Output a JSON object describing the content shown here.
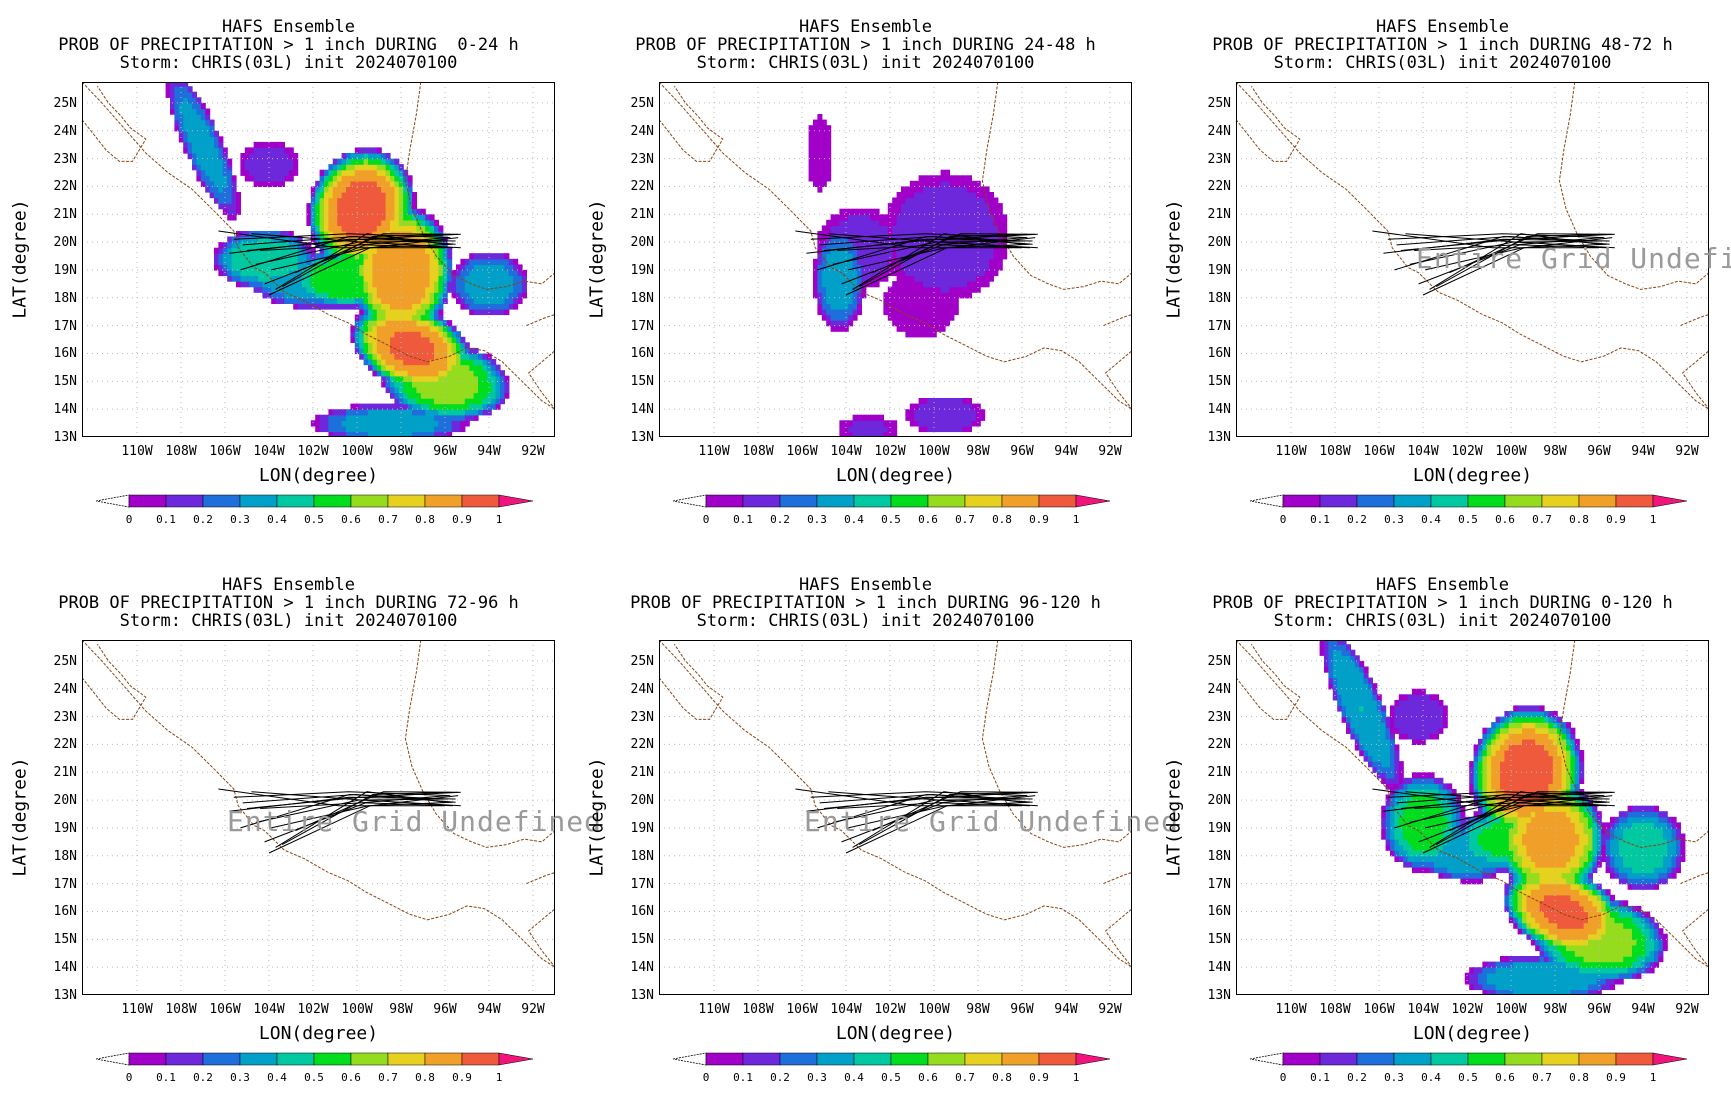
{
  "panels": [
    {
      "title1": "HAFS Ensemble",
      "title2": "PROB OF PRECIPITATION > 1 inch DURING  0-24 h",
      "title3": "Storm: CHRIS(03L) init 2024070100",
      "message": "",
      "field": "p0_24"
    },
    {
      "title1": "HAFS Ensemble",
      "title2": "PROB OF PRECIPITATION > 1 inch DURING 24-48 h",
      "title3": "Storm: CHRIS(03L) init 2024070100",
      "message": "",
      "field": "p24_48"
    },
    {
      "title1": "HAFS Ensemble",
      "title2": "PROB OF PRECIPITATION > 1 inch DURING 48-72 h",
      "title3": "Storm: CHRIS(03L) init 2024070100",
      "message": "Entire Grid Undefined",
      "field": "none"
    },
    {
      "title1": "HAFS Ensemble",
      "title2": "PROB OF PRECIPITATION > 1 inch DURING 72-96 h",
      "title3": "Storm: CHRIS(03L) init 2024070100",
      "message": "Entire Grid Undefined",
      "field": "none"
    },
    {
      "title1": "HAFS Ensemble",
      "title2": "PROB OF PRECIPITATION > 1 inch DURING 96-120 h",
      "title3": "Storm: CHRIS(03L) init 2024070100",
      "message": "Entire Grid Undefined",
      "field": "none"
    },
    {
      "title1": "HAFS Ensemble",
      "title2": "PROB OF PRECIPITATION > 1 inch DURING 0-120 h",
      "title3": "Storm: CHRIS(03L) init 2024070100",
      "message": "",
      "field": "p0_120"
    }
  ],
  "axes": {
    "xlabel": "LON(degree)",
    "ylabel": "LAT(degree)",
    "lon_range": [
      -112.5,
      -91
    ],
    "lat_range": [
      13,
      25.75
    ],
    "xticks": [
      -110,
      -108,
      -106,
      -104,
      -102,
      -100,
      -98,
      -96,
      -94,
      -92
    ],
    "xtick_labels": [
      "110W",
      "108W",
      "106W",
      "104W",
      "102W",
      "100W",
      "98W",
      "96W",
      "94W",
      "92W"
    ],
    "yticks": [
      13,
      14,
      15,
      16,
      17,
      18,
      19,
      20,
      21,
      22,
      23,
      24,
      25
    ],
    "ytick_labels": [
      "13N",
      "14N",
      "15N",
      "16N",
      "17N",
      "18N",
      "19N",
      "20N",
      "21N",
      "22N",
      "23N",
      "24N",
      "25N"
    ],
    "grid": "dotted"
  },
  "colorbar": {
    "labels": [
      "0",
      "0.1",
      "0.2",
      "0.3",
      "0.4",
      "0.5",
      "0.6",
      "0.7",
      "0.8",
      "0.9",
      "1"
    ],
    "colors": [
      "#a000c8",
      "#6e28dc",
      "#1e6edc",
      "#00a0c8",
      "#00c8a0",
      "#00dc1e",
      "#96dc1e",
      "#e6d21e",
      "#f0a028",
      "#f05a3c",
      "#f0147d"
    ],
    "coast_color": "#8b4513",
    "track_color": "#000000"
  }
}
